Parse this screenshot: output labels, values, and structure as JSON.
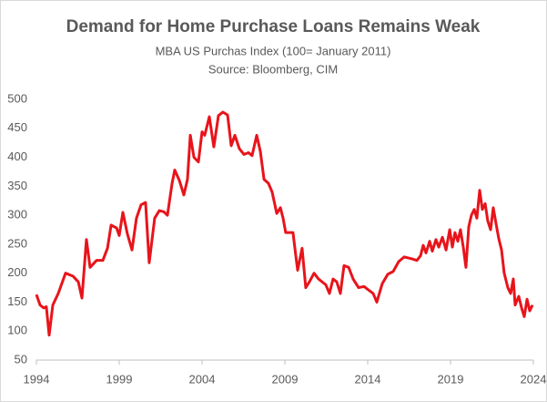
{
  "chart_data": {
    "type": "line",
    "title": "Demand for Home Purchase Loans Remains Weak",
    "subtitle": [
      "MBA US Purchas Index (100= January 2011)",
      "Source: Bloomberg, CIM"
    ],
    "xlim": [
      1994,
      2024
    ],
    "xticks": [
      1994,
      1999,
      2004,
      2009,
      2014,
      2019,
      2024
    ],
    "ylim": [
      50,
      500
    ],
    "yticks": [
      50,
      100,
      150,
      200,
      250,
      300,
      350,
      400,
      450,
      500
    ],
    "grid": false,
    "series": [
      {
        "color": "#e8141b",
        "x": [
          1994.0,
          1994.22,
          1994.44,
          1994.6,
          1994.77,
          1994.99,
          1995.32,
          1995.76,
          1996.2,
          1996.53,
          1996.75,
          1997.02,
          1997.24,
          1997.63,
          1998.01,
          1998.29,
          1998.51,
          1998.84,
          1999.0,
          1999.22,
          1999.49,
          1999.77,
          2000.04,
          2000.32,
          2000.59,
          2000.81,
          2001.14,
          2001.42,
          2001.69,
          2001.91,
          2002.19,
          2002.35,
          2002.63,
          2002.9,
          2003.12,
          2003.29,
          2003.51,
          2003.78,
          2004.0,
          2004.16,
          2004.44,
          2004.71,
          2004.99,
          2005.26,
          2005.54,
          2005.76,
          2005.98,
          2006.25,
          2006.53,
          2006.8,
          2007.02,
          2007.3,
          2007.52,
          2007.74,
          2008.01,
          2008.23,
          2008.51,
          2008.73,
          2008.89,
          2009.05,
          2009.49,
          2009.66,
          2009.77,
          2010.04,
          2010.26,
          2010.48,
          2010.76,
          2011.03,
          2011.47,
          2011.69,
          2011.91,
          2012.13,
          2012.35,
          2012.57,
          2012.85,
          2013.12,
          2013.45,
          2013.78,
          2014.0,
          2014.33,
          2014.55,
          2014.88,
          2015.21,
          2015.54,
          2015.87,
          2016.2,
          2016.64,
          2016.97,
          2017.19,
          2017.35,
          2017.52,
          2017.74,
          2017.9,
          2018.12,
          2018.29,
          2018.51,
          2018.73,
          2018.95,
          2019.11,
          2019.27,
          2019.44,
          2019.6,
          2019.77,
          2019.93,
          2020.1,
          2020.26,
          2020.43,
          2020.59,
          2020.76,
          2020.92,
          2021.09,
          2021.25,
          2021.42,
          2021.58,
          2021.75,
          2021.91,
          2022.08,
          2022.24,
          2022.46,
          2022.63,
          2022.79,
          2022.9,
          2023.12,
          2023.29,
          2023.45,
          2023.62,
          2023.78,
          2023.95
        ],
        "values": [
          163,
          145,
          140,
          142,
          93,
          145,
          165,
          200,
          195,
          185,
          157,
          258,
          210,
          222,
          222,
          243,
          283,
          278,
          265,
          305,
          268,
          240,
          295,
          318,
          322,
          218,
          295,
          308,
          306,
          300,
          355,
          378,
          360,
          335,
          362,
          438,
          400,
          392,
          444,
          438,
          470,
          418,
          472,
          478,
          473,
          420,
          438,
          415,
          405,
          408,
          403,
          438,
          410,
          362,
          355,
          340,
          303,
          313,
          295,
          270,
          270,
          230,
          205,
          243,
          175,
          185,
          200,
          190,
          180,
          165,
          190,
          185,
          165,
          213,
          210,
          190,
          175,
          177,
          172,
          165,
          150,
          182,
          198,
          203,
          220,
          228,
          225,
          222,
          230,
          248,
          235,
          255,
          238,
          258,
          245,
          262,
          240,
          275,
          245,
          270,
          255,
          275,
          245,
          210,
          280,
          300,
          310,
          295,
          343,
          310,
          320,
          290,
          275,
          313,
          285,
          260,
          240,
          200,
          175,
          165,
          190,
          145,
          160,
          140,
          125,
          155,
          135,
          145
        ]
      }
    ]
  }
}
